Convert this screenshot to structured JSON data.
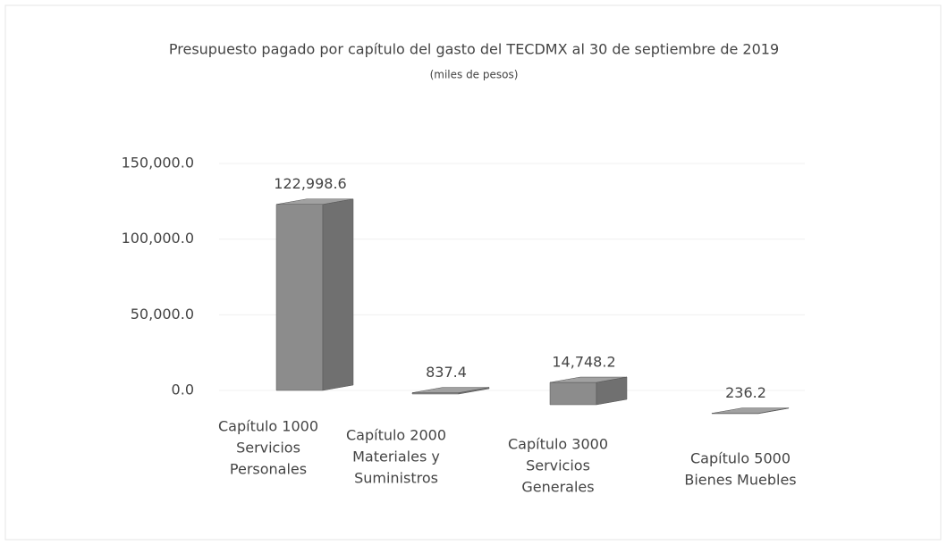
{
  "chart_data": {
    "type": "bar3d",
    "title": "Presupuesto pagado por capítulo del gasto del TECDMX al 30 de septiembre de 2019",
    "subtitle": "(miles de pesos)",
    "categories": [
      [
        "Capítulo 1000",
        "Servicios",
        "Personales"
      ],
      [
        "Capítulo 2000",
        "Materiales y",
        "Suministros"
      ],
      [
        "Capítulo 3000",
        "Servicios",
        "Generales"
      ],
      [
        "Capítulo 5000",
        "Bienes Muebles"
      ]
    ],
    "values": [
      122998.6,
      837.4,
      14748.2,
      236.2
    ],
    "value_labels": [
      "122,998.6",
      "837.4",
      "14,748.2",
      "236.2"
    ],
    "color": "#8c8c8c",
    "ylim": [
      0,
      150000
    ],
    "yticks": [
      {
        "value": 0,
        "label": "0.0"
      },
      {
        "value": 50000,
        "label": "50,000.0"
      },
      {
        "value": 100000,
        "label": "100,000.0"
      },
      {
        "value": 150000,
        "label": "150,000.0"
      }
    ],
    "grid": true
  }
}
